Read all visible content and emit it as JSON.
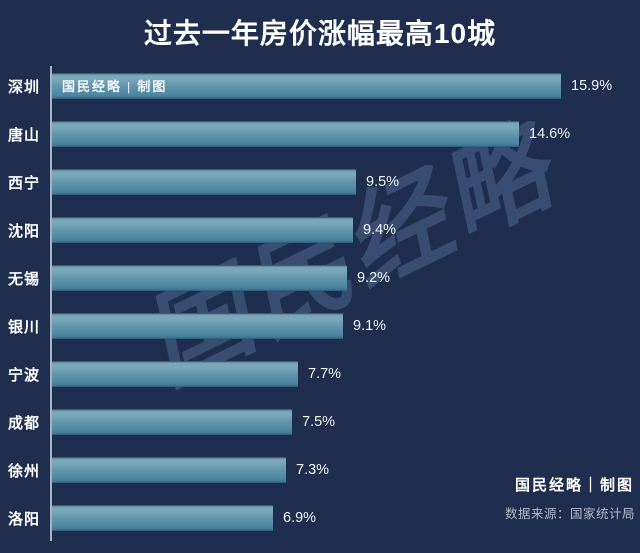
{
  "title": "过去一年房价涨幅最高10城",
  "watermark_text": "国民经略",
  "inbar_credit": "国民经略 | 制图",
  "footer": {
    "credit": "国民经略｜制图",
    "source": "数据来源：国家统计局"
  },
  "colors": {
    "background": "#1f2d4e",
    "bar_top": "#7ba7ba",
    "bar_bottom": "#3d758f",
    "axis": "#aab2c0",
    "title_text": "#ffffff",
    "value_text": "#f2f4f7",
    "source_text": "#b2bac9",
    "watermark": "rgba(143,176,224,0.24)"
  },
  "chart_data": {
    "type": "bar",
    "orientation": "horizontal",
    "title": "过去一年房价涨幅最高10城",
    "categories": [
      "深圳",
      "唐山",
      "西宁",
      "沈阳",
      "无锡",
      "银川",
      "宁波",
      "成都",
      "徐州",
      "洛阳"
    ],
    "values": [
      15.9,
      14.6,
      9.5,
      9.4,
      9.2,
      9.1,
      7.7,
      7.5,
      7.3,
      6.9
    ],
    "value_labels": [
      "15.9%",
      "14.6%",
      "9.5%",
      "9.4%",
      "9.2%",
      "9.1%",
      "7.7%",
      "7.5%",
      "7.3%",
      "6.9%"
    ],
    "xlabel": "",
    "ylabel": "",
    "xlim": [
      0,
      16
    ],
    "grid": false,
    "legend": false,
    "value_label_position": "outside-right"
  }
}
